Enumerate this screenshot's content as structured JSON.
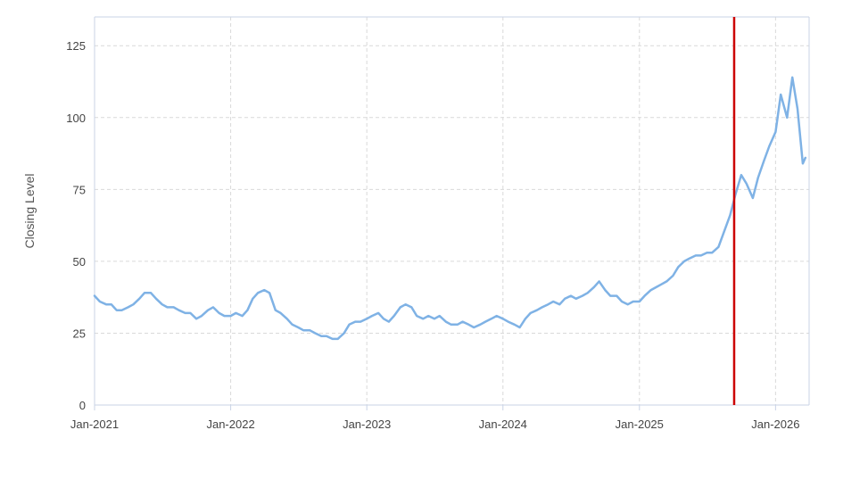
{
  "chart_data": {
    "type": "line",
    "title": "",
    "xlabel": "",
    "ylabel": "Closing Level",
    "grid": true,
    "ylim": [
      0,
      135
    ],
    "xlim": [
      "2021-01-01",
      "2026-04-01"
    ],
    "y_ticks": [
      0,
      25,
      50,
      75,
      100,
      125
    ],
    "x_ticks": [
      {
        "date": "2021-01-01",
        "label": "Jan-2021"
      },
      {
        "date": "2022-01-01",
        "label": "Jan-2022"
      },
      {
        "date": "2023-01-01",
        "label": "Jan-2023"
      },
      {
        "date": "2024-01-01",
        "label": "Jan-2024"
      },
      {
        "date": "2025-01-01",
        "label": "Jan-2025"
      },
      {
        "date": "2026-01-01",
        "label": "Jan-2026"
      }
    ],
    "series": [
      {
        "color": "#7fb2e5",
        "points": [
          [
            "2021-01-01",
            38
          ],
          [
            "2021-01-15",
            36
          ],
          [
            "2021-02-01",
            35
          ],
          [
            "2021-02-15",
            35
          ],
          [
            "2021-03-01",
            33
          ],
          [
            "2021-03-15",
            33
          ],
          [
            "2021-04-01",
            34
          ],
          [
            "2021-04-15",
            35
          ],
          [
            "2021-05-01",
            37
          ],
          [
            "2021-05-15",
            39
          ],
          [
            "2021-06-01",
            39
          ],
          [
            "2021-06-15",
            37
          ],
          [
            "2021-07-01",
            35
          ],
          [
            "2021-07-15",
            34
          ],
          [
            "2021-08-01",
            34
          ],
          [
            "2021-08-15",
            33
          ],
          [
            "2021-09-01",
            32
          ],
          [
            "2021-09-15",
            32
          ],
          [
            "2021-10-01",
            30
          ],
          [
            "2021-10-15",
            31
          ],
          [
            "2021-11-01",
            33
          ],
          [
            "2021-11-15",
            34
          ],
          [
            "2021-12-01",
            32
          ],
          [
            "2021-12-15",
            31
          ],
          [
            "2022-01-01",
            31
          ],
          [
            "2022-01-15",
            32
          ],
          [
            "2022-02-01",
            31
          ],
          [
            "2022-02-15",
            33
          ],
          [
            "2022-03-01",
            37
          ],
          [
            "2022-03-15",
            39
          ],
          [
            "2022-04-01",
            40
          ],
          [
            "2022-04-15",
            39
          ],
          [
            "2022-05-01",
            33
          ],
          [
            "2022-05-15",
            32
          ],
          [
            "2022-06-01",
            30
          ],
          [
            "2022-06-15",
            28
          ],
          [
            "2022-07-01",
            27
          ],
          [
            "2022-07-15",
            26
          ],
          [
            "2022-08-01",
            26
          ],
          [
            "2022-08-15",
            25
          ],
          [
            "2022-09-01",
            24
          ],
          [
            "2022-09-15",
            24
          ],
          [
            "2022-10-01",
            23
          ],
          [
            "2022-10-15",
            23
          ],
          [
            "2022-11-01",
            25
          ],
          [
            "2022-11-15",
            28
          ],
          [
            "2022-12-01",
            29
          ],
          [
            "2022-12-15",
            29
          ],
          [
            "2023-01-01",
            30
          ],
          [
            "2023-01-15",
            31
          ],
          [
            "2023-02-01",
            32
          ],
          [
            "2023-02-15",
            30
          ],
          [
            "2023-03-01",
            29
          ],
          [
            "2023-03-15",
            31
          ],
          [
            "2023-04-01",
            34
          ],
          [
            "2023-04-15",
            35
          ],
          [
            "2023-05-01",
            34
          ],
          [
            "2023-05-15",
            31
          ],
          [
            "2023-06-01",
            30
          ],
          [
            "2023-06-15",
            31
          ],
          [
            "2023-07-01",
            30
          ],
          [
            "2023-07-15",
            31
          ],
          [
            "2023-08-01",
            29
          ],
          [
            "2023-08-15",
            28
          ],
          [
            "2023-09-01",
            28
          ],
          [
            "2023-09-15",
            29
          ],
          [
            "2023-10-01",
            28
          ],
          [
            "2023-10-15",
            27
          ],
          [
            "2023-11-01",
            28
          ],
          [
            "2023-11-15",
            29
          ],
          [
            "2023-12-01",
            30
          ],
          [
            "2023-12-15",
            31
          ],
          [
            "2024-01-01",
            30
          ],
          [
            "2024-01-15",
            29
          ],
          [
            "2024-02-01",
            28
          ],
          [
            "2024-02-15",
            27
          ],
          [
            "2024-03-01",
            30
          ],
          [
            "2024-03-15",
            32
          ],
          [
            "2024-04-01",
            33
          ],
          [
            "2024-04-15",
            34
          ],
          [
            "2024-05-01",
            35
          ],
          [
            "2024-05-15",
            36
          ],
          [
            "2024-06-01",
            35
          ],
          [
            "2024-06-15",
            37
          ],
          [
            "2024-07-01",
            38
          ],
          [
            "2024-07-15",
            37
          ],
          [
            "2024-08-01",
            38
          ],
          [
            "2024-08-15",
            39
          ],
          [
            "2024-09-01",
            41
          ],
          [
            "2024-09-15",
            43
          ],
          [
            "2024-10-01",
            40
          ],
          [
            "2024-10-15",
            38
          ],
          [
            "2024-11-01",
            38
          ],
          [
            "2024-11-15",
            36
          ],
          [
            "2024-12-01",
            35
          ],
          [
            "2024-12-15",
            36
          ],
          [
            "2025-01-01",
            36
          ],
          [
            "2025-01-15",
            38
          ],
          [
            "2025-02-01",
            40
          ],
          [
            "2025-02-15",
            41
          ],
          [
            "2025-03-01",
            42
          ],
          [
            "2025-03-15",
            43
          ],
          [
            "2025-04-01",
            45
          ],
          [
            "2025-04-15",
            48
          ],
          [
            "2025-05-01",
            50
          ],
          [
            "2025-05-15",
            51
          ],
          [
            "2025-06-01",
            52
          ],
          [
            "2025-06-15",
            52
          ],
          [
            "2025-07-01",
            53
          ],
          [
            "2025-07-15",
            53
          ],
          [
            "2025-08-01",
            55
          ],
          [
            "2025-08-15",
            60
          ],
          [
            "2025-09-01",
            66
          ],
          [
            "2025-09-15",
            73
          ],
          [
            "2025-10-01",
            80
          ],
          [
            "2025-10-15",
            77
          ],
          [
            "2025-11-01",
            72
          ],
          [
            "2025-11-15",
            79
          ],
          [
            "2025-12-01",
            85
          ],
          [
            "2025-12-15",
            90
          ],
          [
            "2026-01-01",
            95
          ],
          [
            "2026-01-15",
            108
          ],
          [
            "2026-02-01",
            100
          ],
          [
            "2026-02-15",
            114
          ],
          [
            "2026-03-01",
            103
          ],
          [
            "2026-03-15",
            84
          ],
          [
            "2026-03-22",
            86
          ]
        ]
      }
    ],
    "markers": [
      {
        "type": "vertical-line",
        "date": "2025-09-12",
        "color": "#cc0000"
      }
    ]
  }
}
